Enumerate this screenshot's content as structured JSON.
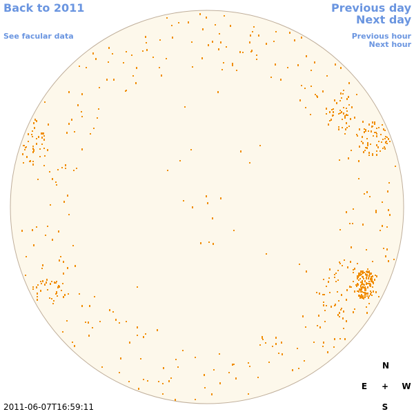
{
  "nav": {
    "back": "Back to 2011",
    "facular": "See facular data",
    "previous_day": "Previous day",
    "next_day": "Next day",
    "previous_hour": "Previous hour",
    "next_hour": "Next hour"
  },
  "timestamp": "2011-06-07T16:59:11",
  "compass": {
    "north": "N",
    "east": "E",
    "center": "+",
    "west": "W",
    "south": "S"
  }
}
